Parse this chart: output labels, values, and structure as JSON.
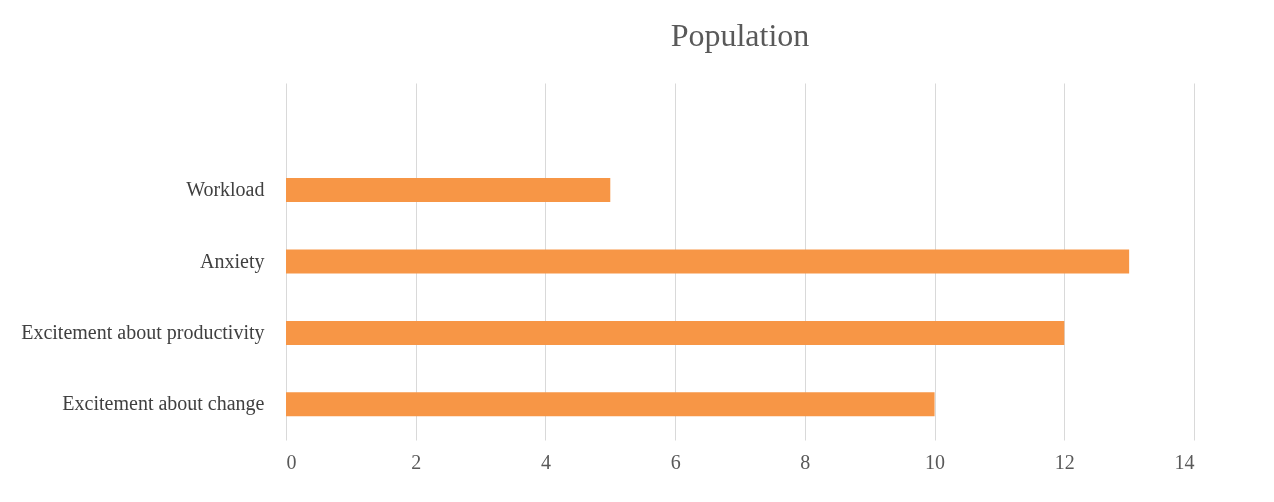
{
  "chart_data": {
    "type": "bar",
    "orientation": "horizontal",
    "title": "Population",
    "categories": [
      null,
      "Workload",
      "Anxiety",
      "Excitement about productivity",
      "Excitement about change"
    ],
    "values": [
      null,
      5,
      13,
      12,
      10
    ],
    "color": "#f79646",
    "xlim": [
      0,
      14
    ],
    "xticks": [
      0,
      2,
      4,
      6,
      8,
      10,
      12,
      14
    ],
    "grid": "x"
  }
}
